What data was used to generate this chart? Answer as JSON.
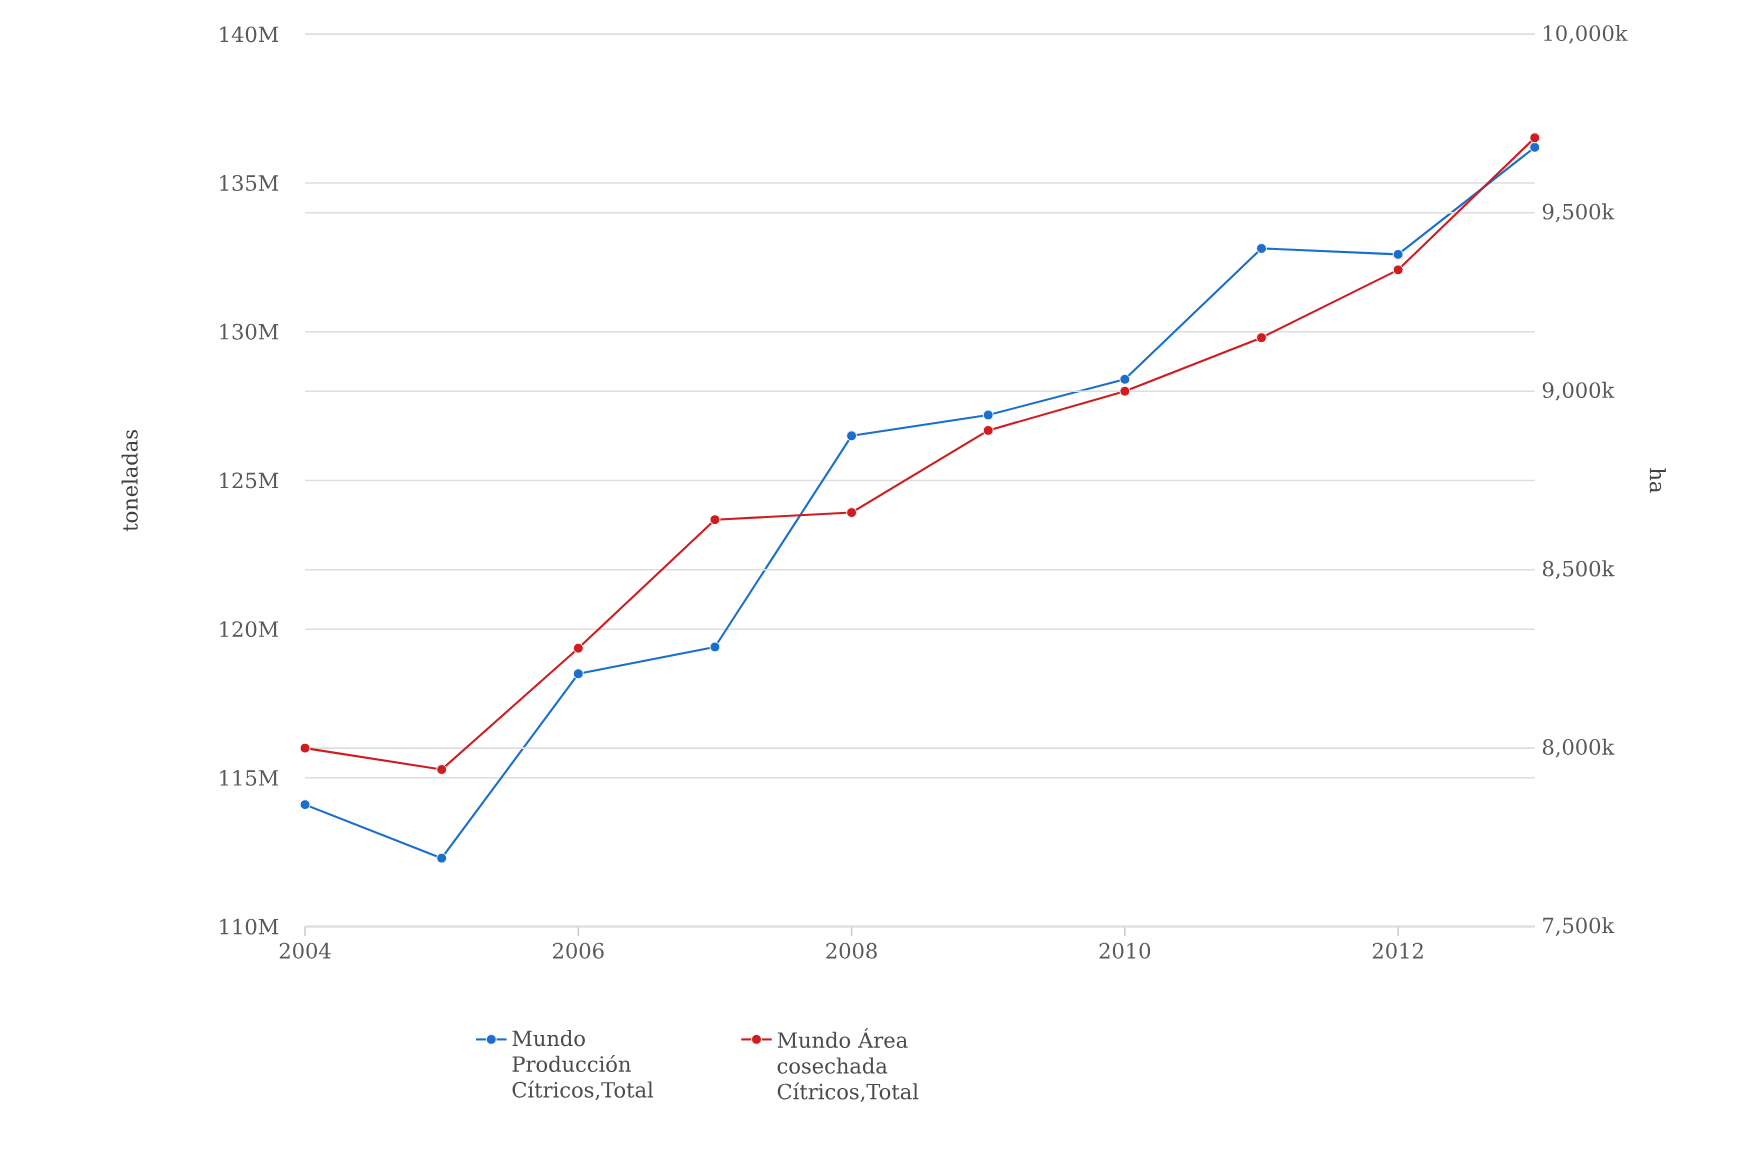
{
  "chart_data": {
    "type": "line",
    "xlabel": null,
    "ylabel": "toneladas",
    "y2label": "ha",
    "x": [
      2004,
      2005,
      2006,
      2007,
      2008,
      2009,
      2010,
      2011,
      2012,
      2013
    ],
    "xlim": [
      2004,
      2013
    ],
    "xticks": [
      2004,
      2006,
      2008,
      2010,
      2012
    ],
    "ylim": [
      110000000,
      140000000
    ],
    "yticks": [
      {
        "value": 110000000,
        "label": "110M"
      },
      {
        "value": 115000000,
        "label": "115M"
      },
      {
        "value": 120000000,
        "label": "120M"
      },
      {
        "value": 125000000,
        "label": "125M"
      },
      {
        "value": 130000000,
        "label": "130M"
      },
      {
        "value": 135000000,
        "label": "135M"
      },
      {
        "value": 140000000,
        "label": "140M"
      }
    ],
    "y2lim": [
      7500000,
      10000000
    ],
    "y2ticks": [
      {
        "value": 7500000,
        "label": "7,500k"
      },
      {
        "value": 8000000,
        "label": "8,000k"
      },
      {
        "value": 8500000,
        "label": "8,500k"
      },
      {
        "value": 9000000,
        "label": "9,000k"
      },
      {
        "value": 9500000,
        "label": "9,500k"
      },
      {
        "value": 10000000,
        "label": "10,000k"
      }
    ],
    "series": [
      {
        "name": "Mundo Producción Cítricos,Total",
        "color": "#1a6fcc",
        "axis": "y",
        "values": [
          114100000,
          112300000,
          118500000,
          119400000,
          126500000,
          127200000,
          128400000,
          132800000,
          132600000,
          136200000
        ]
      },
      {
        "name": "Mundo Área cosechada Cítricos,Total",
        "color": "#d01c1f",
        "axis": "y2",
        "values": [
          8000000,
          7940000,
          8280000,
          8640000,
          8660000,
          8890000,
          9000000,
          9150000,
          9340000,
          9710000
        ]
      }
    ],
    "grid": "y",
    "legend": "bottom",
    "marker": "circle",
    "line_style": "solid"
  }
}
